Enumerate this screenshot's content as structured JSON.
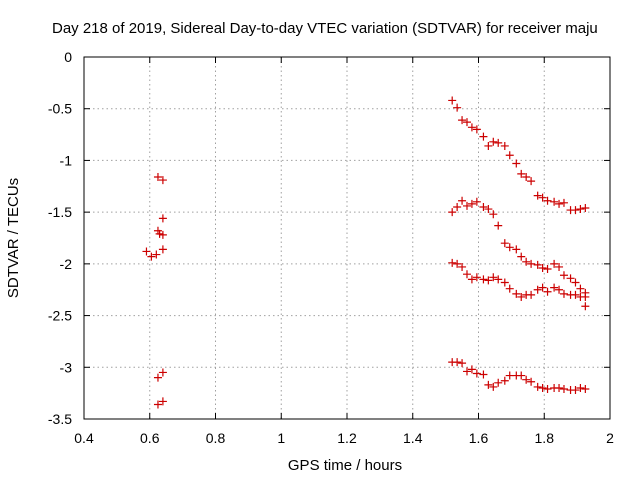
{
  "chart_data": {
    "type": "scatter",
    "title": "Day 218 of 2019, Sidereal Day-to-day VTEC variation (SDTVAR) for receiver maju",
    "xlabel": "GPS time / hours",
    "ylabel": "SDTVAR / TECUs",
    "xlim": [
      0.4,
      2.0
    ],
    "ylim": [
      -3.5,
      0.0
    ],
    "xticks": [
      0.4,
      0.6,
      0.8,
      1.0,
      1.2,
      1.4,
      1.6,
      1.8,
      2.0
    ],
    "xtick_labels": [
      "0.4",
      "0.6",
      "0.8",
      "1",
      "1.2",
      "1.4",
      "1.6",
      "1.8",
      "2"
    ],
    "yticks": [
      0.0,
      -0.5,
      -1.0,
      -1.5,
      -2.0,
      -2.5,
      -3.0,
      -3.5
    ],
    "ytick_labels": [
      "0",
      "-0.5",
      "-1",
      "-1.5",
      "-2",
      "-2.5",
      "-3",
      "-3.5"
    ],
    "grid": true,
    "marker": "plus",
    "color": "#cc0000",
    "points": [
      [
        0.59,
        -1.88
      ],
      [
        0.605,
        -1.93
      ],
      [
        0.62,
        -1.91
      ],
      [
        0.625,
        -1.68
      ],
      [
        0.63,
        -1.71
      ],
      [
        0.64,
        -1.72
      ],
      [
        0.64,
        -1.86
      ],
      [
        0.64,
        -1.56
      ],
      [
        0.625,
        -1.16
      ],
      [
        0.64,
        -1.19
      ],
      [
        0.625,
        -3.1
      ],
      [
        0.64,
        -3.05
      ],
      [
        0.625,
        -3.36
      ],
      [
        0.64,
        -3.33
      ],
      [
        1.52,
        -0.42
      ],
      [
        1.535,
        -0.49
      ],
      [
        1.55,
        -0.61
      ],
      [
        1.565,
        -0.63
      ],
      [
        1.58,
        -0.68
      ],
      [
        1.595,
        -0.7
      ],
      [
        1.615,
        -0.77
      ],
      [
        1.63,
        -0.86
      ],
      [
        1.645,
        -0.82
      ],
      [
        1.66,
        -0.83
      ],
      [
        1.68,
        -0.86
      ],
      [
        1.695,
        -0.95
      ],
      [
        1.715,
        -1.03
      ],
      [
        1.73,
        -1.13
      ],
      [
        1.745,
        -1.16
      ],
      [
        1.76,
        -1.2
      ],
      [
        1.78,
        -1.34
      ],
      [
        1.795,
        -1.36
      ],
      [
        1.81,
        -1.39
      ],
      [
        1.83,
        -1.4
      ],
      [
        1.845,
        -1.42
      ],
      [
        1.86,
        -1.41
      ],
      [
        1.88,
        -1.48
      ],
      [
        1.895,
        -1.48
      ],
      [
        1.91,
        -1.47
      ],
      [
        1.925,
        -1.46
      ],
      [
        1.52,
        -1.5
      ],
      [
        1.535,
        -1.45
      ],
      [
        1.55,
        -1.39
      ],
      [
        1.565,
        -1.44
      ],
      [
        1.58,
        -1.42
      ],
      [
        1.595,
        -1.4
      ],
      [
        1.615,
        -1.45
      ],
      [
        1.63,
        -1.47
      ],
      [
        1.645,
        -1.52
      ],
      [
        1.66,
        -1.63
      ],
      [
        1.68,
        -1.8
      ],
      [
        1.695,
        -1.84
      ],
      [
        1.715,
        -1.86
      ],
      [
        1.73,
        -1.93
      ],
      [
        1.745,
        -1.98
      ],
      [
        1.76,
        -2.0
      ],
      [
        1.78,
        -2.01
      ],
      [
        1.795,
        -2.04
      ],
      [
        1.81,
        -2.05
      ],
      [
        1.83,
        -2.0
      ],
      [
        1.845,
        -2.03
      ],
      [
        1.86,
        -2.11
      ],
      [
        1.88,
        -2.14
      ],
      [
        1.895,
        -2.18
      ],
      [
        1.91,
        -2.24
      ],
      [
        1.925,
        -2.32
      ],
      [
        1.52,
        -1.99
      ],
      [
        1.535,
        -2.0
      ],
      [
        1.55,
        -2.03
      ],
      [
        1.565,
        -2.1
      ],
      [
        1.58,
        -2.15
      ],
      [
        1.595,
        -2.13
      ],
      [
        1.615,
        -2.15
      ],
      [
        1.63,
        -2.16
      ],
      [
        1.645,
        -2.13
      ],
      [
        1.66,
        -2.15
      ],
      [
        1.68,
        -2.18
      ],
      [
        1.695,
        -2.24
      ],
      [
        1.715,
        -2.29
      ],
      [
        1.73,
        -2.32
      ],
      [
        1.745,
        -2.3
      ],
      [
        1.76,
        -2.3
      ],
      [
        1.78,
        -2.25
      ],
      [
        1.795,
        -2.23
      ],
      [
        1.81,
        -2.27
      ],
      [
        1.83,
        -2.23
      ],
      [
        1.845,
        -2.25
      ],
      [
        1.86,
        -2.29
      ],
      [
        1.88,
        -2.3
      ],
      [
        1.895,
        -2.3
      ],
      [
        1.91,
        -2.32
      ],
      [
        1.925,
        -2.28
      ],
      [
        1.925,
        -2.41
      ],
      [
        1.52,
        -2.95
      ],
      [
        1.535,
        -2.95
      ],
      [
        1.55,
        -2.96
      ],
      [
        1.565,
        -3.04
      ],
      [
        1.58,
        -3.02
      ],
      [
        1.595,
        -3.06
      ],
      [
        1.615,
        -3.07
      ],
      [
        1.63,
        -3.17
      ],
      [
        1.645,
        -3.19
      ],
      [
        1.66,
        -3.15
      ],
      [
        1.68,
        -3.13
      ],
      [
        1.695,
        -3.08
      ],
      [
        1.715,
        -3.08
      ],
      [
        1.73,
        -3.08
      ],
      [
        1.745,
        -3.12
      ],
      [
        1.76,
        -3.14
      ],
      [
        1.78,
        -3.19
      ],
      [
        1.795,
        -3.2
      ],
      [
        1.81,
        -3.21
      ],
      [
        1.83,
        -3.2
      ],
      [
        1.845,
        -3.2
      ],
      [
        1.86,
        -3.21
      ],
      [
        1.88,
        -3.22
      ],
      [
        1.895,
        -3.22
      ],
      [
        1.91,
        -3.2
      ],
      [
        1.925,
        -3.21
      ]
    ]
  }
}
